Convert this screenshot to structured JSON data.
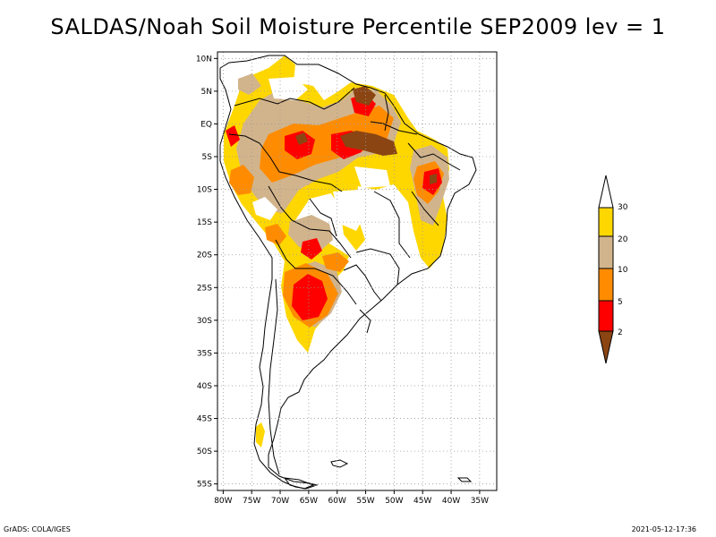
{
  "title": "SALDAS/Noah Soil Moisture Percentile SEP2009 lev = 1",
  "footer": {
    "left": "GrADS: COLA/IGES",
    "right": "2021-05-12-17:36"
  },
  "map": {
    "lat_ticks": [
      "10N",
      "5N",
      "EQ",
      "5S",
      "10S",
      "15S",
      "20S",
      "25S",
      "30S",
      "35S",
      "40S",
      "45S",
      "50S",
      "55S"
    ],
    "lon_ticks": [
      "80W",
      "75W",
      "70W",
      "65W",
      "60W",
      "55W",
      "50W",
      "45W",
      "40W",
      "35W"
    ],
    "lon_range": [
      -81,
      -32
    ],
    "lat_range": [
      -56,
      11
    ],
    "grid": true
  },
  "colorbar": {
    "levels": [
      "2",
      "5",
      "10",
      "20",
      "30"
    ],
    "colors": {
      "lt2": "#8b4513",
      "2to5": "#ff0000",
      "5to10": "#ff8c00",
      "10to20": "#d2b48c",
      "20to30": "#ffd700",
      "gt30": "#ffffff"
    }
  },
  "colors": {
    "brown": "#8b4513",
    "red": "#ff0000",
    "orange": "#ff8c00",
    "tan": "#d2b48c",
    "yellow": "#ffd700"
  }
}
